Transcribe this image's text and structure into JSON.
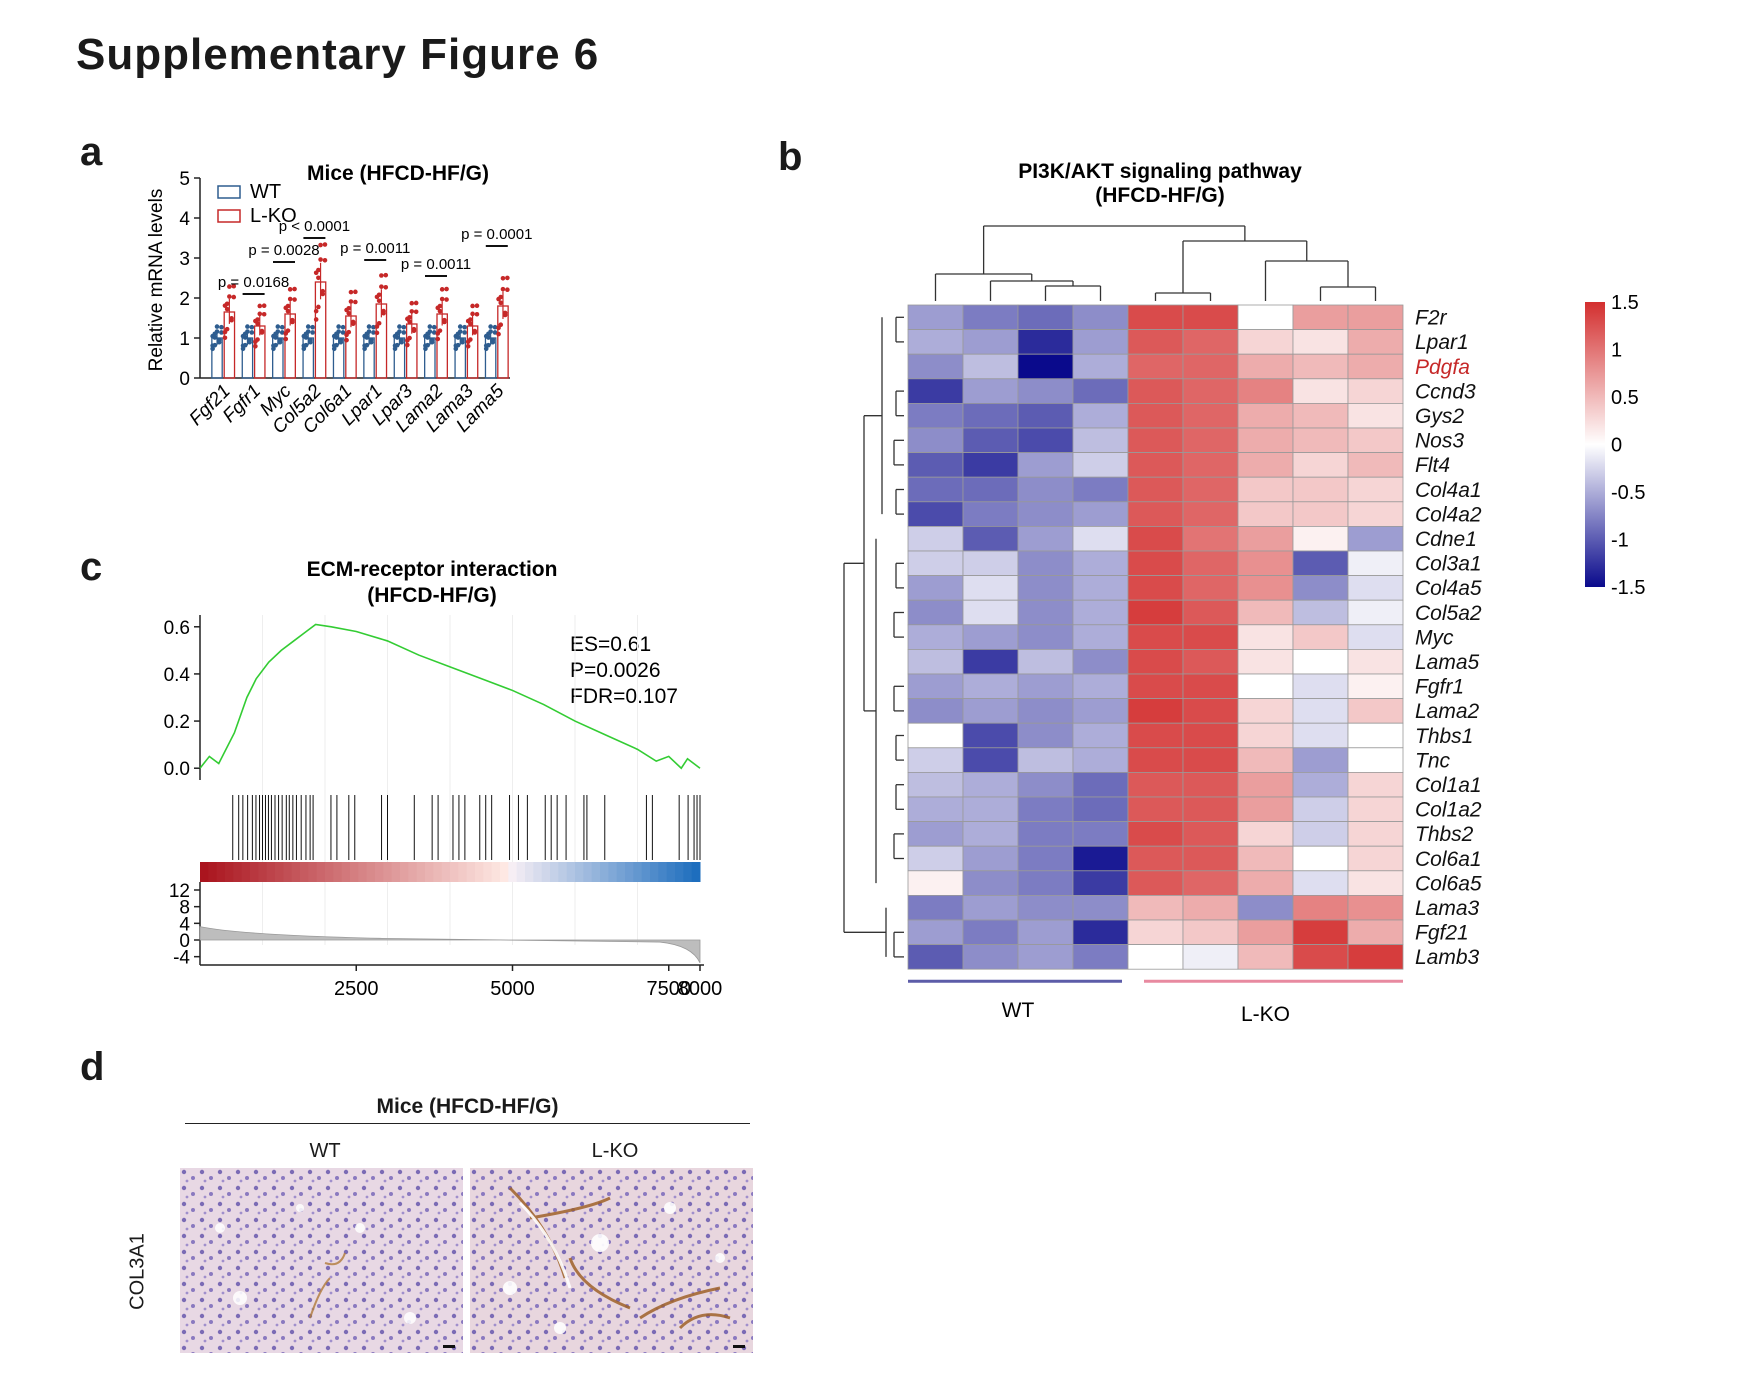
{
  "figure_title": "Supplementary Figure 6",
  "panels": {
    "a": {
      "letter": "a",
      "title": "Mice (HFCD-HF/G)",
      "ylabel": "Relative mRNA  levels"
    },
    "b": {
      "letter": "b",
      "title_line1": "PI3K/AKT signaling pathway",
      "title_line2": "(HFCD-HF/G)",
      "group_labels": [
        "WT",
        "L-KO"
      ]
    },
    "c": {
      "letter": "c",
      "title_line1": "ECM-receptor interaction",
      "title_line2": "(HFCD-HF/G)",
      "stats": [
        "ES=0.61",
        "P=0.0026",
        "FDR=0.107"
      ]
    },
    "d": {
      "letter": "d",
      "title": "Mice (HFCD-HF/G)",
      "col_labels": [
        "WT",
        "L-KO"
      ],
      "row_label": "COL3A1"
    }
  },
  "colors": {
    "wt": "#2e5d8f",
    "lko": "#c62828",
    "heat_high": "#d32f2f",
    "heat_low": "#0a0a8c",
    "enrichment": "#33cc33"
  },
  "chart_data": [
    {
      "panel": "a",
      "type": "bar",
      "title": "Mice (HFCD-HF/G)",
      "ylabel": "Relative mRNA  levels",
      "ylim": [
        0,
        5
      ],
      "yticks": [
        0,
        1,
        2,
        3,
        4,
        5
      ],
      "categories": [
        "Fgf21",
        "Fgfr1",
        "Myc",
        "Col5a2",
        "Col6a1",
        "Lpar1",
        "Lpar3",
        "Lama2",
        "Lama3",
        "Lama5"
      ],
      "legend": [
        "WT",
        "L-KO"
      ],
      "series": [
        {
          "name": "WT",
          "values": [
            1.0,
            1.0,
            1.0,
            1.0,
            1.0,
            1.0,
            1.0,
            1.0,
            1.0,
            1.0
          ]
        },
        {
          "name": "L-KO",
          "values": [
            1.65,
            1.3,
            1.6,
            2.4,
            1.55,
            1.85,
            1.35,
            1.6,
            1.3,
            1.8
          ]
        }
      ],
      "pvalues": [
        {
          "label": "p = 0.0168",
          "category": "Fgfr1",
          "y": 2.1
        },
        {
          "label": "p = 0.0028",
          "category": "Myc",
          "y": 2.9
        },
        {
          "label": "p < 0.0001",
          "category": "Col5a2",
          "y": 3.5
        },
        {
          "label": "p = 0.0011",
          "category": "Lpar1",
          "y": 2.95
        },
        {
          "label": "p = 0.0011",
          "category": "Lama2",
          "y": 2.55
        },
        {
          "label": "p = 0.0001",
          "category": "Lama5",
          "y": 3.3
        }
      ]
    },
    {
      "panel": "b",
      "type": "heatmap",
      "title": "PI3K/AKT signaling pathway (HFCD-HF/G)",
      "rows": [
        "F2r",
        "Lpar1",
        "Pdgfa",
        "Ccnd3",
        "Gys2",
        "Nos3",
        "Flt4",
        "Col4a1",
        "Col4a2",
        "Cdne1",
        "Col3a1",
        "Col4a5",
        "Col5a2",
        "Myc",
        "Lama5",
        "Fgfr1",
        "Lama2",
        "Thbs1",
        "Tnc",
        "Col1a1",
        "Col1a2",
        "Thbs2",
        "Col6a1",
        "Col6a5",
        "Lama3",
        "Fgf21",
        "Lamb3"
      ],
      "highlight_row": "Pdgfa",
      "groups": [
        {
          "name": "WT",
          "columns": 4
        },
        {
          "name": "L-KO",
          "columns": 5
        }
      ],
      "colorbar_ticks": [
        "1.5",
        "1",
        "0.5",
        "0",
        "-0.5",
        "-1",
        "-1.5"
      ],
      "colorbar_range": [
        -1.5,
        1.5
      ],
      "values": [
        [
          -0.6,
          -0.8,
          -0.9,
          -0.7,
          1.3,
          1.3,
          0.0,
          0.7,
          0.7
        ],
        [
          -0.5,
          -0.6,
          -1.3,
          -0.6,
          1.2,
          1.1,
          0.3,
          0.2,
          0.6
        ],
        [
          -0.7,
          -0.4,
          -1.5,
          -0.5,
          1.1,
          1.1,
          0.6,
          0.5,
          0.6
        ],
        [
          -1.2,
          -0.6,
          -0.7,
          -0.9,
          1.2,
          1.1,
          0.9,
          0.2,
          0.3
        ],
        [
          -0.8,
          -0.9,
          -1.0,
          -0.5,
          1.2,
          1.1,
          0.6,
          0.5,
          0.2
        ],
        [
          -0.7,
          -1.0,
          -1.1,
          -0.4,
          1.2,
          1.1,
          0.6,
          0.5,
          0.4
        ],
        [
          -1.0,
          -1.2,
          -0.6,
          -0.3,
          1.2,
          1.1,
          0.6,
          0.3,
          0.5
        ],
        [
          -0.9,
          -0.9,
          -0.7,
          -0.8,
          1.2,
          1.1,
          0.4,
          0.4,
          0.3
        ],
        [
          -1.1,
          -0.8,
          -0.7,
          -0.6,
          1.2,
          1.1,
          0.4,
          0.4,
          0.3
        ],
        [
          -0.3,
          -1.0,
          -0.6,
          -0.2,
          1.3,
          1.0,
          0.7,
          0.1,
          -0.6
        ],
        [
          -0.3,
          -0.3,
          -0.7,
          -0.5,
          1.3,
          1.1,
          0.8,
          -1.0,
          -0.1
        ],
        [
          -0.6,
          -0.2,
          -0.7,
          -0.5,
          1.3,
          1.1,
          0.8,
          -0.7,
          -0.2
        ],
        [
          -0.7,
          -0.2,
          -0.7,
          -0.5,
          1.4,
          1.2,
          0.5,
          -0.4,
          -0.1
        ],
        [
          -0.5,
          -0.6,
          -0.7,
          -0.5,
          1.3,
          1.3,
          0.2,
          0.4,
          -0.2
        ],
        [
          -0.4,
          -1.2,
          -0.4,
          -0.7,
          1.3,
          1.2,
          0.2,
          0.0,
          0.2
        ],
        [
          -0.6,
          -0.5,
          -0.6,
          -0.5,
          1.3,
          1.3,
          0.0,
          -0.2,
          0.1
        ],
        [
          -0.7,
          -0.6,
          -0.7,
          -0.6,
          1.4,
          1.3,
          0.3,
          -0.2,
          0.4
        ],
        [
          0.0,
          -1.1,
          -0.7,
          -0.5,
          1.3,
          1.3,
          0.3,
          -0.2,
          0.0
        ],
        [
          -0.3,
          -1.1,
          -0.4,
          -0.5,
          1.3,
          1.3,
          0.5,
          -0.6,
          0.0
        ],
        [
          -0.4,
          -0.5,
          -0.7,
          -0.9,
          1.2,
          1.2,
          0.7,
          -0.5,
          0.3
        ],
        [
          -0.5,
          -0.5,
          -0.8,
          -0.9,
          1.2,
          1.2,
          0.7,
          -0.3,
          0.3
        ],
        [
          -0.6,
          -0.5,
          -0.8,
          -0.8,
          1.3,
          1.2,
          0.3,
          -0.3,
          0.3
        ],
        [
          -0.3,
          -0.6,
          -0.8,
          -1.4,
          1.2,
          1.2,
          0.5,
          0.0,
          0.3
        ],
        [
          0.1,
          -0.7,
          -0.8,
          -1.2,
          1.2,
          1.1,
          0.6,
          -0.2,
          0.2
        ],
        [
          -0.8,
          -0.6,
          -0.7,
          -0.7,
          0.5,
          0.6,
          -0.7,
          0.9,
          0.8
        ],
        [
          -0.6,
          -0.8,
          -0.6,
          -1.3,
          0.3,
          0.4,
          0.7,
          1.4,
          0.6
        ],
        [
          -1.0,
          -0.7,
          -0.6,
          -0.8,
          0.0,
          -0.1,
          0.5,
          1.3,
          1.4
        ]
      ]
    },
    {
      "panel": "c",
      "type": "line",
      "title": "ECM-receptor interaction (HFCD-HF/G)",
      "xlim": [
        0,
        8000
      ],
      "xticks": [
        2500,
        5000,
        7500,
        8000
      ],
      "enrichment_ylim": [
        -0.05,
        0.65
      ],
      "enrichment_yticks": [
        0.0,
        0.2,
        0.4,
        0.6
      ],
      "rank_yticks": [
        12,
        8,
        4,
        0,
        -4
      ],
      "rank_ylim": [
        -6,
        12
      ],
      "series": [
        {
          "x": [
            0,
            150,
            300,
            550,
            750,
            900,
            1100,
            1300,
            1500,
            1700,
            1850,
            2100,
            2500,
            3000,
            3500,
            4000,
            4500,
            5000,
            5500,
            6000,
            6500,
            7000,
            7300,
            7500,
            7700,
            7800,
            7900,
            8000
          ],
          "y": [
            0.0,
            0.05,
            0.02,
            0.15,
            0.3,
            0.38,
            0.45,
            0.5,
            0.54,
            0.58,
            0.61,
            0.6,
            0.58,
            0.54,
            0.48,
            0.43,
            0.38,
            0.33,
            0.27,
            0.2,
            0.14,
            0.08,
            0.03,
            0.05,
            0.0,
            0.04,
            0.02,
            0.0
          ]
        }
      ],
      "hits": [
        550,
        650,
        720,
        800,
        880,
        940,
        1000,
        1050,
        1100,
        1150,
        1200,
        1260,
        1320,
        1380,
        1450,
        1500,
        1560,
        1620,
        1700,
        1780,
        1850,
        1900,
        2200,
        2300,
        2500,
        2600,
        3050,
        3150,
        3600,
        3900,
        4000,
        4250,
        4350,
        4450,
        4700,
        4800,
        4900,
        5200,
        5350,
        5500,
        5800,
        5900,
        6000,
        6150,
        6450,
        6500,
        6800,
        7500,
        7600,
        8050,
        8200,
        8300,
        8350,
        8400
      ]
    }
  ]
}
